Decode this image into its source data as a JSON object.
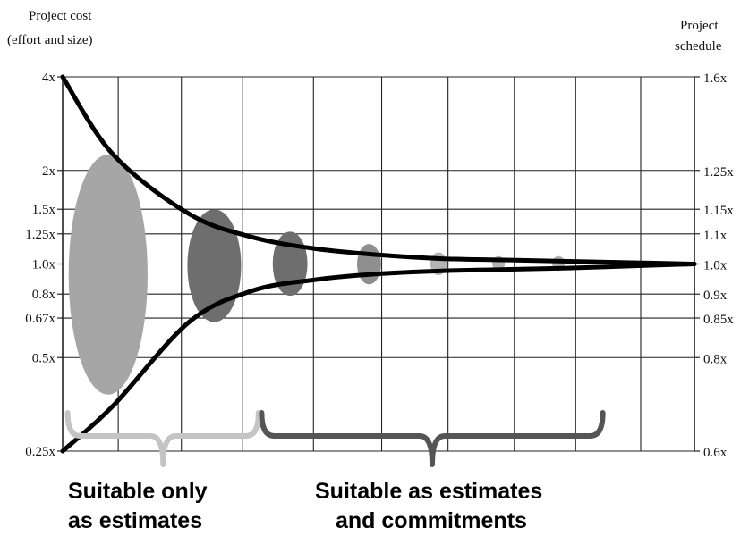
{
  "chart_data": {
    "type": "line",
    "left_axis": {
      "title_lines": [
        "Project cost",
        "(effort and size)"
      ],
      "scale": "log",
      "ticks": [
        {
          "value": 4,
          "label": "4x"
        },
        {
          "value": 2,
          "label": "2x"
        },
        {
          "value": 1.5,
          "label": "1.5x"
        },
        {
          "value": 1.25,
          "label": "1.25x"
        },
        {
          "value": 1.0,
          "label": "1.0x"
        },
        {
          "value": 0.8,
          "label": "0.8x"
        },
        {
          "value": 0.67,
          "label": "0.67x"
        },
        {
          "value": 0.5,
          "label": "0.5x"
        },
        {
          "value": 0.25,
          "label": "0.25x"
        }
      ],
      "range": [
        0.25,
        4
      ]
    },
    "right_axis": {
      "title_lines": [
        "Project",
        "schedule"
      ],
      "ticks": [
        {
          "value": 1.6,
          "label": "1.6x"
        },
        {
          "value": 1.25,
          "label": "1.25x"
        },
        {
          "value": 1.15,
          "label": "1.15x"
        },
        {
          "value": 1.1,
          "label": "1.1x"
        },
        {
          "value": 1.0,
          "label": "1.0x"
        },
        {
          "value": 0.9,
          "label": "0.9x"
        },
        {
          "value": 0.85,
          "label": "0.85x"
        },
        {
          "value": 0.8,
          "label": "0.8x"
        },
        {
          "value": 0.6,
          "label": "0.6x"
        }
      ]
    },
    "x_range": [
      0,
      10
    ],
    "gridlines_x": [
      0,
      0.88,
      1.88,
      2.85,
      3.97,
      5.05,
      6.1,
      7.15,
      8.12,
      9.15,
      10
    ],
    "grid": true,
    "series": [
      {
        "values": [
          [
            0,
            4
          ],
          [
            0.8,
            2.25
          ],
          [
            2,
            1.45
          ],
          [
            3,
            1.22
          ],
          [
            4,
            1.12
          ],
          [
            5,
            1.07
          ],
          [
            6,
            1.04
          ],
          [
            7,
            1.03
          ],
          [
            8,
            1.02
          ],
          [
            9,
            1.01
          ],
          [
            10,
            1.0
          ]
        ]
      },
      {
        "values": [
          [
            0,
            0.25
          ],
          [
            0.8,
            0.35
          ],
          [
            2,
            0.65
          ],
          [
            3,
            0.82
          ],
          [
            4,
            0.89
          ],
          [
            5,
            0.93
          ],
          [
            6,
            0.95
          ],
          [
            7,
            0.96
          ],
          [
            8,
            0.97
          ],
          [
            9,
            0.985
          ],
          [
            10,
            1.0
          ]
        ]
      }
    ],
    "ellipses": [
      {
        "x": 0.72,
        "y_low": 0.38,
        "y_high": 2.25,
        "width": 1.25,
        "color": "#a6a6a6"
      },
      {
        "x": 2.4,
        "y_low": 0.65,
        "y_high": 1.5,
        "width": 0.85,
        "color": "#6e6e6e"
      },
      {
        "x": 3.6,
        "y_low": 0.79,
        "y_high": 1.27,
        "width": 0.55,
        "color": "#6e6e6e"
      },
      {
        "x": 4.85,
        "y_low": 0.86,
        "y_high": 1.16,
        "width": 0.38,
        "color": "#8f8f8f"
      },
      {
        "x": 5.95,
        "y_low": 0.92,
        "y_high": 1.09,
        "width": 0.26,
        "color": "#b3b3b3"
      },
      {
        "x": 6.9,
        "y_low": 0.95,
        "y_high": 1.06,
        "width": 0.2,
        "color": "#b3b3b3"
      },
      {
        "x": 7.85,
        "y_low": 0.95,
        "y_high": 1.06,
        "width": 0.2,
        "color": "#b3b3b3"
      }
    ],
    "brackets": [
      {
        "from": 0.08,
        "to": 3.1,
        "color": "#c4c4c4"
      },
      {
        "from": 3.15,
        "to": 8.55,
        "color": "#555555"
      }
    ],
    "annotations": [
      {
        "lines": [
          "Suitable only",
          "as estimates"
        ]
      },
      {
        "lines": [
          "Suitable as estimates",
          "and commitments"
        ]
      }
    ]
  }
}
